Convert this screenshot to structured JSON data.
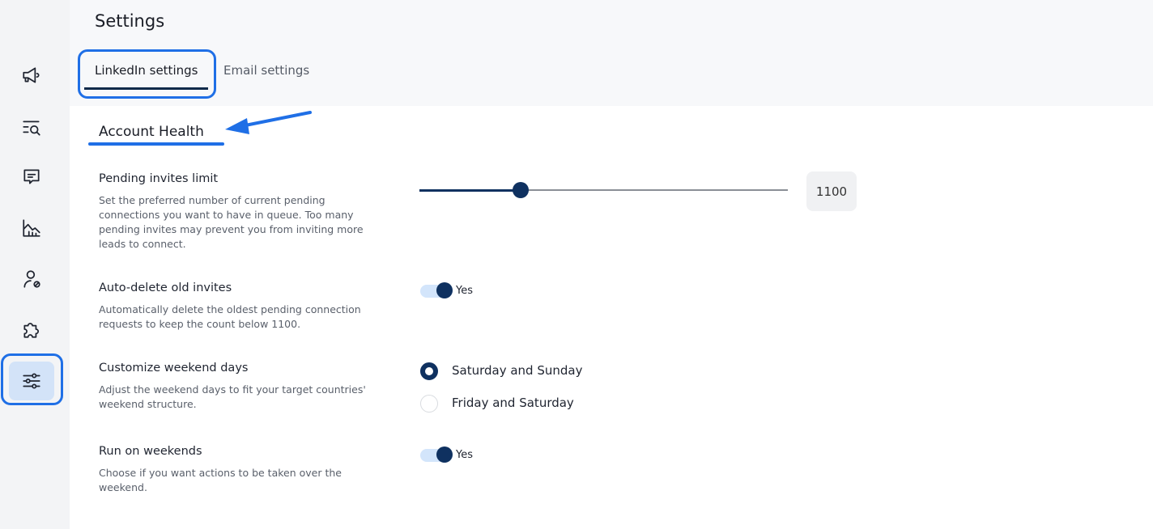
{
  "header": {
    "title": "Settings",
    "tabs": [
      {
        "label": "LinkedIn settings",
        "active": true
      },
      {
        "label": "Email settings",
        "active": false
      }
    ]
  },
  "sidebar": {
    "items": [
      {
        "icon": "megaphone-icon"
      },
      {
        "icon": "list-search-icon"
      },
      {
        "icon": "message-icon"
      },
      {
        "icon": "chart-icon"
      },
      {
        "icon": "user-blocked-icon"
      },
      {
        "icon": "puzzle-icon"
      },
      {
        "icon": "sliders-icon",
        "active": true
      }
    ]
  },
  "section": {
    "title": "Account Health"
  },
  "settings": {
    "pending": {
      "label": "Pending invites limit",
      "description": "Set the preferred number of current pending connections you want to have in queue. Too many pending invites may prevent you from inviting more leads to connect.",
      "value": "1100",
      "slider_fraction": 0.275
    },
    "auto_delete": {
      "label": "Auto-delete old invites",
      "description": "Automatically delete the oldest pending connection requests to keep the count below 1100.",
      "toggle": true,
      "toggle_label": "Yes"
    },
    "weekend": {
      "label": "Customize weekend days",
      "description": "Adjust the weekend days to fit your target countries' weekend structure.",
      "options": [
        {
          "label": "Saturday and Sunday",
          "selected": true
        },
        {
          "label": "Friday and Saturday",
          "selected": false
        }
      ]
    },
    "run_weekends": {
      "label": "Run on weekends",
      "description": "Choose if you want actions to be taken over the weekend.",
      "toggle": true,
      "toggle_label": "Yes"
    }
  },
  "colors": {
    "accent": "#0f3160",
    "annotation": "#1f6fe6",
    "toggle_track": "#d3e5fb"
  }
}
